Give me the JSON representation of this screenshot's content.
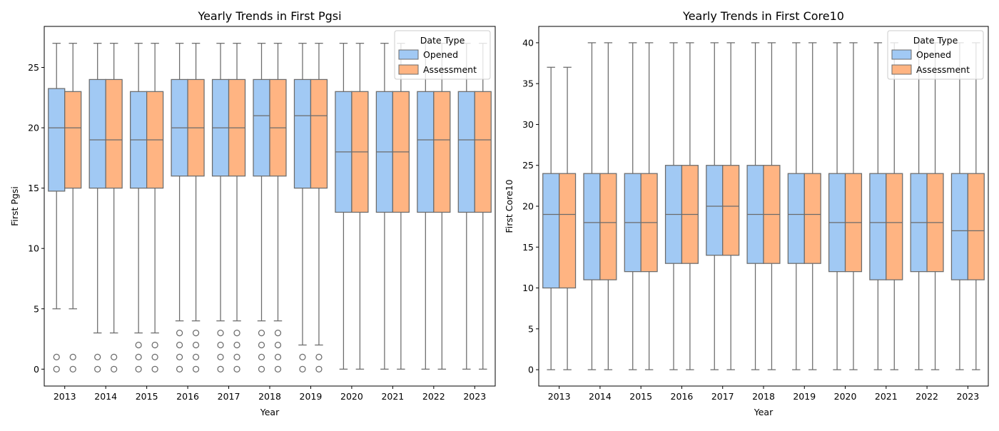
{
  "chart_data": [
    {
      "type": "box",
      "title": "Yearly Trends in First Pgsi",
      "xlabel": "Year",
      "ylabel": "First Pgsi",
      "ylim": [
        -1.4,
        28.4
      ],
      "yticks": [
        0,
        5,
        10,
        15,
        20,
        25
      ],
      "categories": [
        "2013",
        "2014",
        "2015",
        "2016",
        "2017",
        "2018",
        "2019",
        "2020",
        "2021",
        "2022",
        "2023"
      ],
      "legend": {
        "title": "Date Type",
        "position": "top-right"
      },
      "series": [
        {
          "name": "Opened",
          "color": "#a1c9f4",
          "boxes": [
            {
              "whislo": 5,
              "q1": 14.75,
              "med": 20,
              "q3": 23.25,
              "whishi": 27,
              "fliers": [
                0,
                1
              ]
            },
            {
              "whislo": 3,
              "q1": 15,
              "med": 19,
              "q3": 24,
              "whishi": 27,
              "fliers": [
                0,
                1
              ]
            },
            {
              "whislo": 3,
              "q1": 15,
              "med": 19,
              "q3": 23,
              "whishi": 27,
              "fliers": [
                0,
                1,
                2
              ]
            },
            {
              "whislo": 4,
              "q1": 16,
              "med": 20,
              "q3": 24,
              "whishi": 27,
              "fliers": [
                0,
                1,
                2,
                3
              ]
            },
            {
              "whislo": 4,
              "q1": 16,
              "med": 20,
              "q3": 24,
              "whishi": 27,
              "fliers": [
                0,
                1,
                2,
                3
              ]
            },
            {
              "whislo": 4,
              "q1": 16,
              "med": 21,
              "q3": 24,
              "whishi": 27,
              "fliers": [
                0,
                1,
                2,
                3
              ]
            },
            {
              "whislo": 2,
              "q1": 15,
              "med": 21,
              "q3": 24,
              "whishi": 27,
              "fliers": [
                0,
                1
              ]
            },
            {
              "whislo": 0,
              "q1": 13,
              "med": 18,
              "q3": 23,
              "whishi": 27,
              "fliers": []
            },
            {
              "whislo": 0,
              "q1": 13,
              "med": 18,
              "q3": 23,
              "whishi": 27,
              "fliers": []
            },
            {
              "whislo": 0,
              "q1": 13,
              "med": 19,
              "q3": 23,
              "whishi": 27,
              "fliers": []
            },
            {
              "whislo": 0,
              "q1": 13,
              "med": 19,
              "q3": 23,
              "whishi": 27,
              "fliers": []
            }
          ]
        },
        {
          "name": "Assessment",
          "color": "#ffb482",
          "boxes": [
            {
              "whislo": 5,
              "q1": 15,
              "med": 20,
              "q3": 23,
              "whishi": 27,
              "fliers": [
                0,
                1
              ]
            },
            {
              "whislo": 3,
              "q1": 15,
              "med": 19,
              "q3": 24,
              "whishi": 27,
              "fliers": [
                0,
                1
              ]
            },
            {
              "whislo": 3,
              "q1": 15,
              "med": 19,
              "q3": 23,
              "whishi": 27,
              "fliers": [
                0,
                1,
                2
              ]
            },
            {
              "whislo": 4,
              "q1": 16,
              "med": 20,
              "q3": 24,
              "whishi": 27,
              "fliers": [
                0,
                1,
                2,
                3
              ]
            },
            {
              "whislo": 4,
              "q1": 16,
              "med": 20,
              "q3": 24,
              "whishi": 27,
              "fliers": [
                0,
                1,
                2,
                3
              ]
            },
            {
              "whislo": 4,
              "q1": 16,
              "med": 20,
              "q3": 24,
              "whishi": 27,
              "fliers": [
                0,
                1,
                2,
                3
              ]
            },
            {
              "whislo": 2,
              "q1": 15,
              "med": 21,
              "q3": 24,
              "whishi": 27,
              "fliers": [
                0,
                1
              ]
            },
            {
              "whislo": 0,
              "q1": 13,
              "med": 18,
              "q3": 23,
              "whishi": 27,
              "fliers": []
            },
            {
              "whislo": 0,
              "q1": 13,
              "med": 18,
              "q3": 23,
              "whishi": 27,
              "fliers": []
            },
            {
              "whislo": 0,
              "q1": 13,
              "med": 19,
              "q3": 23,
              "whishi": 27,
              "fliers": []
            },
            {
              "whislo": 0,
              "q1": 13,
              "med": 19,
              "q3": 23,
              "whishi": 27,
              "fliers": []
            }
          ]
        }
      ]
    },
    {
      "type": "box",
      "title": "Yearly Trends in First Core10",
      "xlabel": "Year",
      "ylabel": "First Core10",
      "ylim": [
        -2,
        42
      ],
      "yticks": [
        0,
        5,
        10,
        15,
        20,
        25,
        30,
        35,
        40
      ],
      "categories": [
        "2013",
        "2014",
        "2015",
        "2016",
        "2017",
        "2018",
        "2019",
        "2020",
        "2021",
        "2022",
        "2023"
      ],
      "legend": {
        "title": "Date Type",
        "position": "top-right"
      },
      "series": [
        {
          "name": "Opened",
          "color": "#a1c9f4",
          "boxes": [
            {
              "whislo": 0,
              "q1": 10,
              "med": 19,
              "q3": 24,
              "whishi": 37,
              "fliers": []
            },
            {
              "whislo": 0,
              "q1": 11,
              "med": 18,
              "q3": 24,
              "whishi": 40,
              "fliers": []
            },
            {
              "whislo": 0,
              "q1": 12,
              "med": 18,
              "q3": 24,
              "whishi": 40,
              "fliers": []
            },
            {
              "whislo": 0,
              "q1": 13,
              "med": 19,
              "q3": 25,
              "whishi": 40,
              "fliers": []
            },
            {
              "whislo": 0,
              "q1": 14,
              "med": 20,
              "q3": 25,
              "whishi": 40,
              "fliers": []
            },
            {
              "whislo": 0,
              "q1": 13,
              "med": 19,
              "q3": 25,
              "whishi": 40,
              "fliers": []
            },
            {
              "whislo": 0,
              "q1": 13,
              "med": 19,
              "q3": 24,
              "whishi": 40,
              "fliers": []
            },
            {
              "whislo": 0,
              "q1": 12,
              "med": 18,
              "q3": 24,
              "whishi": 40,
              "fliers": []
            },
            {
              "whislo": 0,
              "q1": 11,
              "med": 18,
              "q3": 24,
              "whishi": 40,
              "fliers": []
            },
            {
              "whislo": 0,
              "q1": 12,
              "med": 18,
              "q3": 24,
              "whishi": 40,
              "fliers": []
            },
            {
              "whislo": 0,
              "q1": 11,
              "med": 17,
              "q3": 24,
              "whishi": 40,
              "fliers": []
            }
          ]
        },
        {
          "name": "Assessment",
          "color": "#ffb482",
          "boxes": [
            {
              "whislo": 0,
              "q1": 10,
              "med": 19,
              "q3": 24,
              "whishi": 37,
              "fliers": []
            },
            {
              "whislo": 0,
              "q1": 11,
              "med": 18,
              "q3": 24,
              "whishi": 40,
              "fliers": []
            },
            {
              "whislo": 0,
              "q1": 12,
              "med": 18,
              "q3": 24,
              "whishi": 40,
              "fliers": []
            },
            {
              "whislo": 0,
              "q1": 13,
              "med": 19,
              "q3": 25,
              "whishi": 40,
              "fliers": []
            },
            {
              "whislo": 0,
              "q1": 14,
              "med": 20,
              "q3": 25,
              "whishi": 40,
              "fliers": []
            },
            {
              "whislo": 0,
              "q1": 13,
              "med": 19,
              "q3": 25,
              "whishi": 40,
              "fliers": []
            },
            {
              "whislo": 0,
              "q1": 13,
              "med": 19,
              "q3": 24,
              "whishi": 40,
              "fliers": []
            },
            {
              "whislo": 0,
              "q1": 12,
              "med": 18,
              "q3": 24,
              "whishi": 40,
              "fliers": []
            },
            {
              "whislo": 0,
              "q1": 11,
              "med": 18,
              "q3": 24,
              "whishi": 40,
              "fliers": []
            },
            {
              "whislo": 0,
              "q1": 12,
              "med": 18,
              "q3": 24,
              "whishi": 40,
              "fliers": []
            },
            {
              "whislo": 0,
              "q1": 11,
              "med": 17,
              "q3": 24,
              "whishi": 40,
              "fliers": []
            }
          ]
        }
      ]
    }
  ]
}
